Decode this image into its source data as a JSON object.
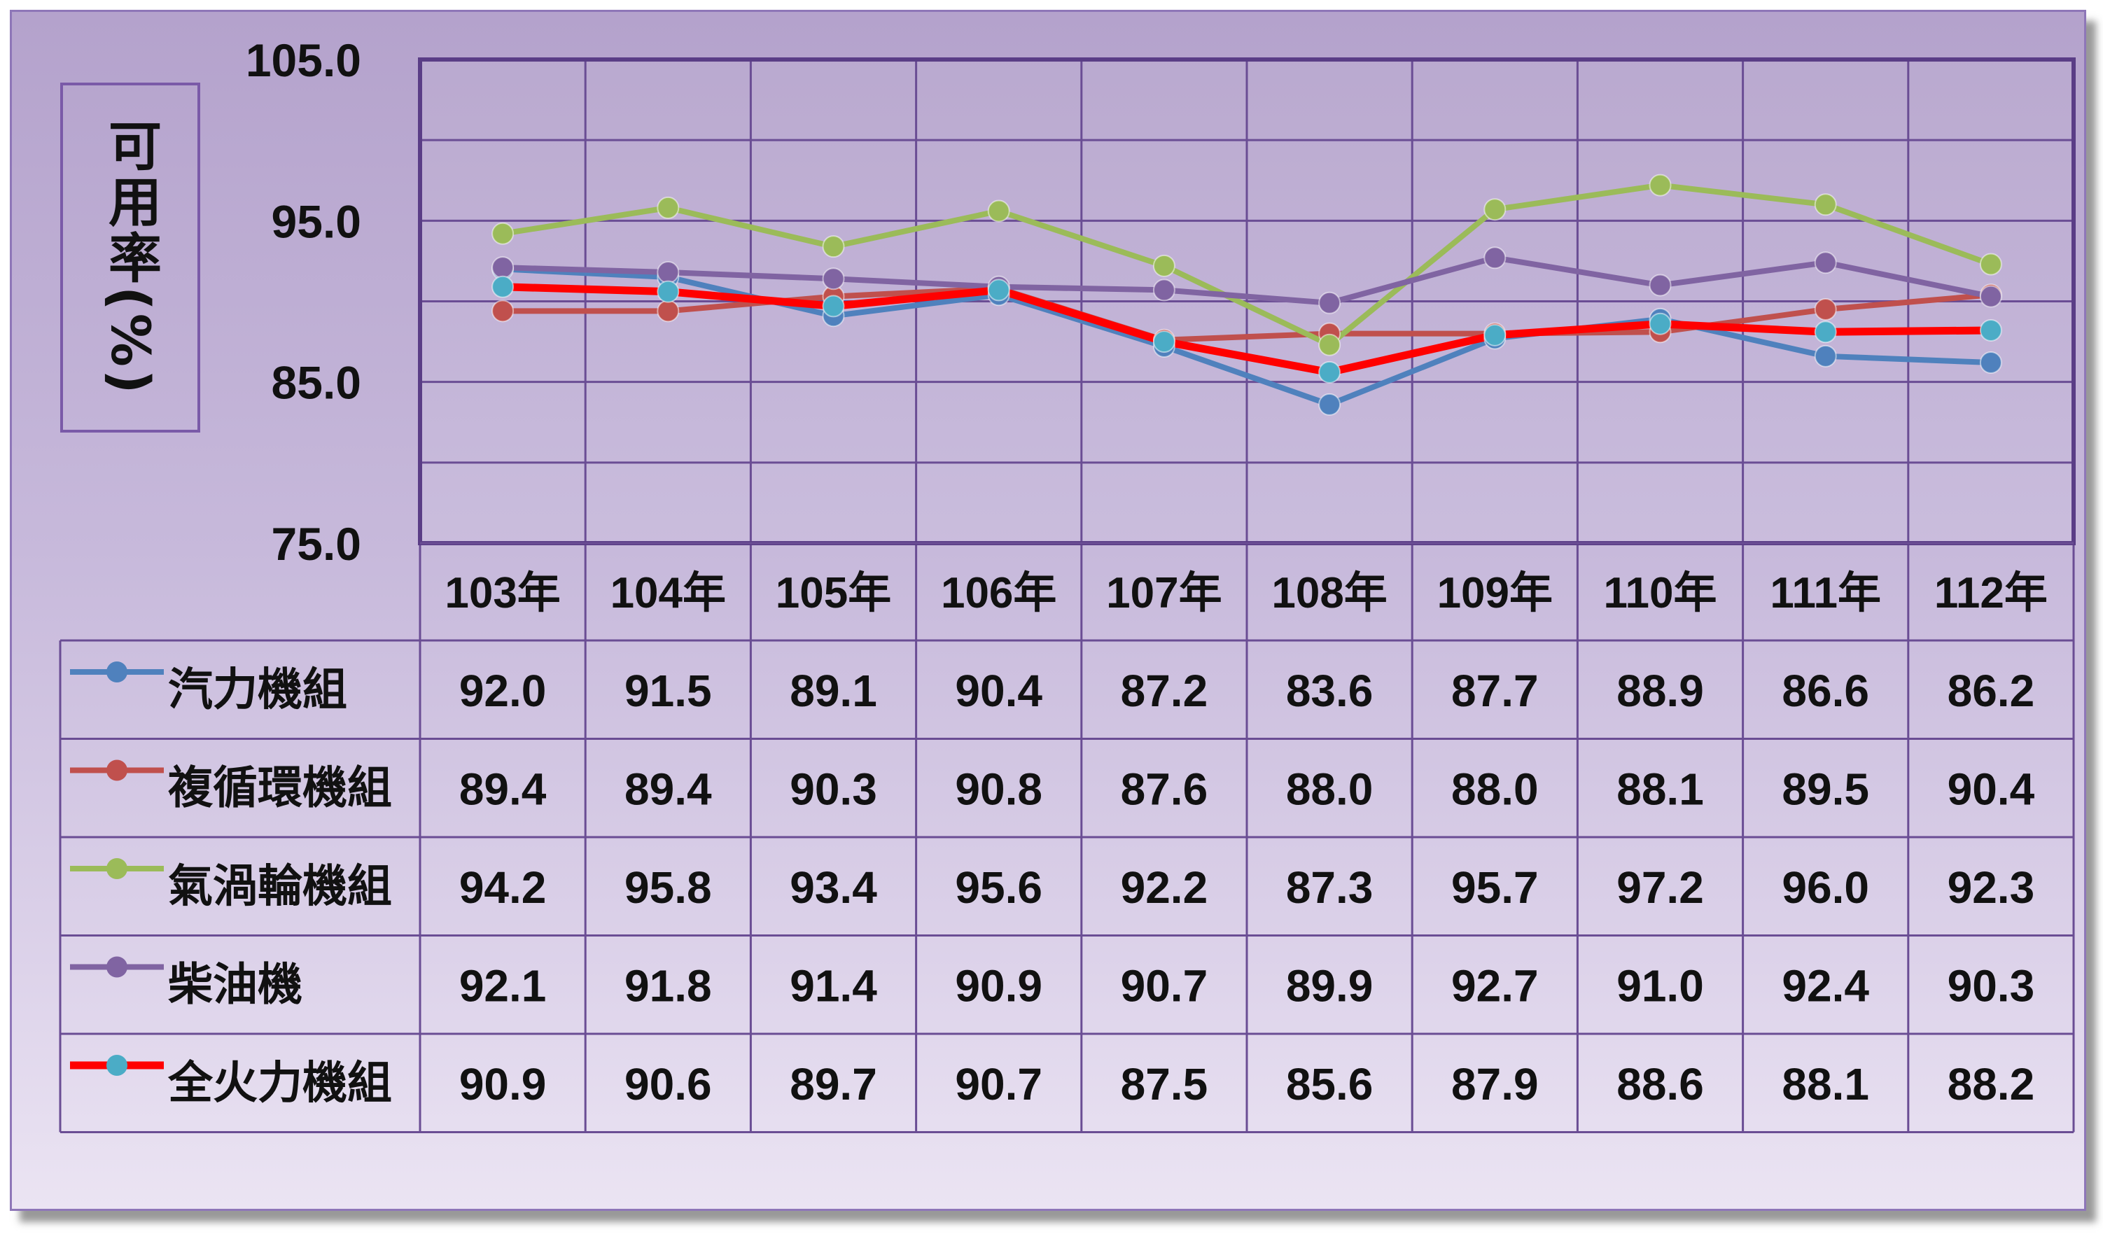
{
  "chart_data": {
    "type": "line",
    "ylabel": "可用率(%)",
    "ylim": [
      75.0,
      105.0
    ],
    "yticks": [
      "105.0",
      "95.0",
      "85.0",
      "75.0"
    ],
    "categories": [
      "103年",
      "104年",
      "105年",
      "106年",
      "107年",
      "108年",
      "109年",
      "110年",
      "111年",
      "112年"
    ],
    "grid": true,
    "legend_placement": "data-table",
    "series": [
      {
        "name": "汽力機組",
        "color": "#4f81bd",
        "marker": "#4f81bd",
        "values": [
          92.0,
          91.5,
          89.1,
          90.4,
          87.2,
          83.6,
          87.7,
          88.9,
          86.6,
          86.2
        ]
      },
      {
        "name": "複循環機組",
        "color": "#c0504d",
        "marker": "#c0504d",
        "values": [
          89.4,
          89.4,
          90.3,
          90.8,
          87.6,
          88.0,
          88.0,
          88.1,
          89.5,
          90.4
        ]
      },
      {
        "name": "氣渦輪機組",
        "color": "#9bbb59",
        "marker": "#9bbb59",
        "values": [
          94.2,
          95.8,
          93.4,
          95.6,
          92.2,
          87.3,
          95.7,
          97.2,
          96.0,
          92.3
        ]
      },
      {
        "name": "柴油機",
        "color": "#8064a2",
        "marker": "#8064a2",
        "values": [
          92.1,
          91.8,
          91.4,
          90.9,
          90.7,
          89.9,
          92.7,
          91.0,
          92.4,
          90.3
        ]
      },
      {
        "name": "全火力機組",
        "color": "#ff0000",
        "marker": "#4bacc6",
        "values": [
          90.9,
          90.6,
          89.7,
          90.7,
          87.5,
          85.6,
          87.9,
          88.6,
          88.1,
          88.2
        ]
      }
    ],
    "table": [
      [
        "92.0",
        "91.5",
        "89.1",
        "90.4",
        "87.2",
        "83.6",
        "87.7",
        "88.9",
        "86.6",
        "86.2"
      ],
      [
        "89.4",
        "89.4",
        "90.3",
        "90.8",
        "87.6",
        "88.0",
        "88.0",
        "88.1",
        "89.5",
        "90.4"
      ],
      [
        "94.2",
        "95.8",
        "93.4",
        "95.6",
        "92.2",
        "87.3",
        "95.7",
        "97.2",
        "96.0",
        "92.3"
      ],
      [
        "92.1",
        "91.8",
        "91.4",
        "90.9",
        "90.7",
        "89.9",
        "92.7",
        "91.0",
        "92.4",
        "90.3"
      ],
      [
        "90.9",
        "90.6",
        "89.7",
        "90.7",
        "87.5",
        "85.6",
        "87.9",
        "88.6",
        "88.1",
        "88.2"
      ]
    ]
  }
}
